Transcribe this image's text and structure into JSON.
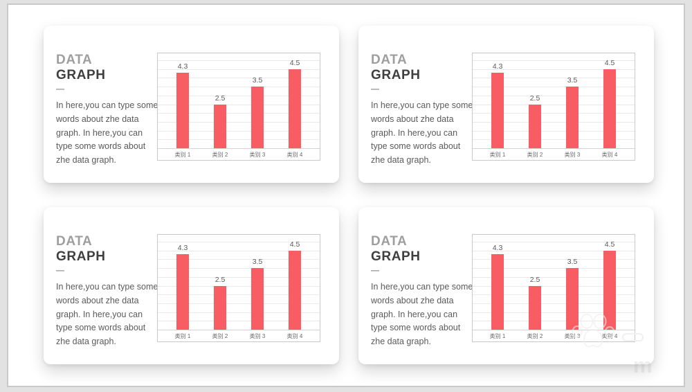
{
  "colors": {
    "bar": "#f85d64",
    "title_gray": "#9e9e9e",
    "title_dark": "#3f3f3f",
    "body_text": "#5a5a5a",
    "grid_line": "#e9e9e9",
    "chart_border": "#c9c9c9",
    "slide_border": "#c9c9c9",
    "outer_background": "#e2e2e2",
    "card_background": "#ffffff"
  },
  "cards": [
    {
      "title_line1": "DATA",
      "title_line2": "GRAPH",
      "divider": "—",
      "body": "In here,you can type some words about zhe data graph. In here,you can type some words about zhe data graph."
    },
    {
      "title_line1": "DATA",
      "title_line2": "GRAPH",
      "divider": "—",
      "body": "In here,you can type some words about zhe data graph. In here,you can type some words about zhe data graph."
    },
    {
      "title_line1": "DATA",
      "title_line2": "GRAPH",
      "divider": "—",
      "body": "In here,you can type some words about zhe data graph. In here,you can type some words about zhe data graph."
    },
    {
      "title_line1": "DATA",
      "title_line2": "GRAPH",
      "divider": "—",
      "body": "In here,you can type some words about zhe data graph. In here,you can type some words about zhe data graph."
    }
  ],
  "chart_data": [
    {
      "type": "bar",
      "categories": [
        "类别 1",
        "类别 2",
        "类别 3",
        "类别 4"
      ],
      "values": [
        4.3,
        2.5,
        3.5,
        4.5
      ],
      "data_labels": [
        "4.3",
        "2.5",
        "3.5",
        "4.5"
      ],
      "title": "",
      "xlabel": "",
      "ylabel": "",
      "ylim": [
        0,
        5
      ],
      "gridline_step": 0.5,
      "grid": true,
      "legend": false,
      "bar_color": "#f85d64"
    },
    {
      "type": "bar",
      "categories": [
        "类别 1",
        "类别 2",
        "类别 3",
        "类别 4"
      ],
      "values": [
        4.3,
        2.5,
        3.5,
        4.5
      ],
      "data_labels": [
        "4.3",
        "2.5",
        "3.5",
        "4.5"
      ],
      "title": "",
      "xlabel": "",
      "ylabel": "",
      "ylim": [
        0,
        5
      ],
      "gridline_step": 0.5,
      "grid": true,
      "legend": false,
      "bar_color": "#f85d64"
    },
    {
      "type": "bar",
      "categories": [
        "类别 1",
        "类别 2",
        "类别 3",
        "类别 4"
      ],
      "values": [
        4.3,
        2.5,
        3.5,
        4.5
      ],
      "data_labels": [
        "4.3",
        "2.5",
        "3.5",
        "4.5"
      ],
      "title": "",
      "xlabel": "",
      "ylabel": "",
      "ylim": [
        0,
        5
      ],
      "gridline_step": 0.5,
      "grid": true,
      "legend": false,
      "bar_color": "#f85d64"
    },
    {
      "type": "bar",
      "categories": [
        "类别 1",
        "类别 2",
        "类别 3",
        "类别 4"
      ],
      "values": [
        4.3,
        2.5,
        3.5,
        4.5
      ],
      "data_labels": [
        "4.3",
        "2.5",
        "3.5",
        "4.5"
      ],
      "title": "",
      "xlabel": "",
      "ylabel": "",
      "ylim": [
        0,
        5
      ],
      "gridline_step": 0.5,
      "grid": true,
      "legend": false,
      "bar_color": "#f85d64"
    }
  ],
  "watermark": {
    "paw_icon": "paw-print-icon",
    "letter": "m"
  }
}
